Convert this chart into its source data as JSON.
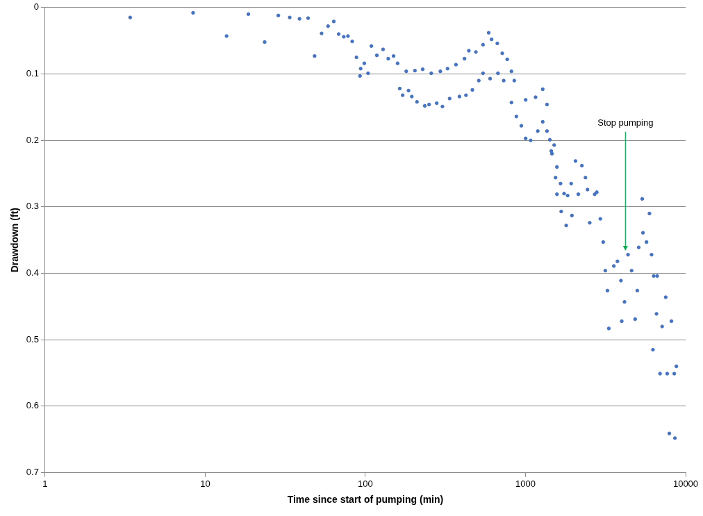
{
  "chart_data": {
    "type": "scatter",
    "xlabel": "Time since start of pumping (min)",
    "ylabel": "Drawdown (ft)",
    "log": "x",
    "grid": "y",
    "marker": "circle",
    "xlim": [
      1,
      10000
    ],
    "xticks": [
      1,
      10,
      100,
      1000,
      10000
    ],
    "ylim": [
      0.7,
      0
    ],
    "yticks": [
      0,
      0.1,
      0.2,
      0.3,
      0.4,
      0.5,
      0.6,
      0.7
    ],
    "annotations": [
      "Stop pumping"
    ],
    "series": [
      {
        "color": "#4472c4",
        "x": [
          3.4,
          8.4,
          13.6,
          18.6,
          23.5,
          28.6,
          33.7,
          38.8,
          43.9,
          48.2,
          53.3,
          58.5,
          63.5,
          68.2,
          73.3,
          77.9,
          82.8,
          88,
          93.5,
          98.5,
          109,
          118,
          129,
          139,
          150,
          159,
          92.6,
          104,
          164,
          171,
          186,
          195,
          210,
          235,
          250,
          279,
          303,
          336,
          387,
          425,
          466,
          511,
          543,
          601,
          673,
          731,
          180,
          204,
          228,
          258,
          294,
          326,
          368,
          416,
          443,
          490,
          543,
          589,
          614,
          667,
          716,
          769,
          817,
          851,
          817,
          877,
          942,
          1002,
          1077,
          1002,
          1156,
          1281,
          1362,
          1281,
          1193,
          1362,
          1419,
          1510,
          1449,
          1572,
          1655,
          1742,
          1833,
          1929,
          1463,
          1541,
          1572,
          1671,
          1796,
          1950,
          2052,
          2250,
          2368,
          2137,
          2439,
          2518,
          2704,
          2787,
          2933,
          3057,
          3150,
          3250,
          3314,
          3563,
          3750,
          3946,
          3990,
          4152,
          4368,
          4598,
          4838,
          4989,
          5093,
          5358,
          5415,
          5698,
          5943,
          6129,
          6317,
          6250,
          6577,
          6639,
          6922,
          7134,
          7508,
          7669,
          7908,
          8150,
          8490,
          8576,
          8753
        ],
        "values": [
          0.015,
          0.008,
          0.043,
          0.01,
          0.052,
          0.012,
          0.015,
          0.017,
          0.016,
          0.073,
          0.039,
          0.028,
          0.021,
          0.04,
          0.044,
          0.043,
          0.051,
          0.075,
          0.092,
          0.084,
          0.058,
          0.072,
          0.063,
          0.077,
          0.073,
          0.084,
          0.103,
          0.099,
          0.122,
          0.132,
          0.125,
          0.134,
          0.142,
          0.148,
          0.146,
          0.144,
          0.149,
          0.137,
          0.134,
          0.132,
          0.124,
          0.11,
          0.099,
          0.107,
          0.099,
          0.11,
          0.096,
          0.095,
          0.093,
          0.099,
          0.096,
          0.092,
          0.086,
          0.077,
          0.065,
          0.067,
          0.056,
          0.038,
          0.048,
          0.054,
          0.069,
          0.078,
          0.096,
          0.11,
          0.143,
          0.164,
          0.178,
          0.197,
          0.2,
          0.139,
          0.135,
          0.123,
          0.146,
          0.172,
          0.186,
          0.186,
          0.199,
          0.207,
          0.216,
          0.24,
          0.265,
          0.28,
          0.283,
          0.265,
          0.22,
          0.256,
          0.281,
          0.307,
          0.328,
          0.313,
          0.231,
          0.238,
          0.256,
          0.281,
          0.274,
          0.324,
          0.281,
          0.278,
          0.318,
          0.353,
          0.396,
          0.426,
          0.483,
          0.389,
          0.382,
          0.411,
          0.472,
          0.443,
          0.372,
          0.396,
          0.469,
          0.426,
          0.361,
          0.288,
          0.339,
          0.353,
          0.31,
          0.372,
          0.404,
          0.515,
          0.461,
          0.404,
          0.551,
          0.48,
          0.436,
          0.551,
          0.641,
          0.472,
          0.551,
          0.648,
          0.54
        ]
      }
    ]
  }
}
